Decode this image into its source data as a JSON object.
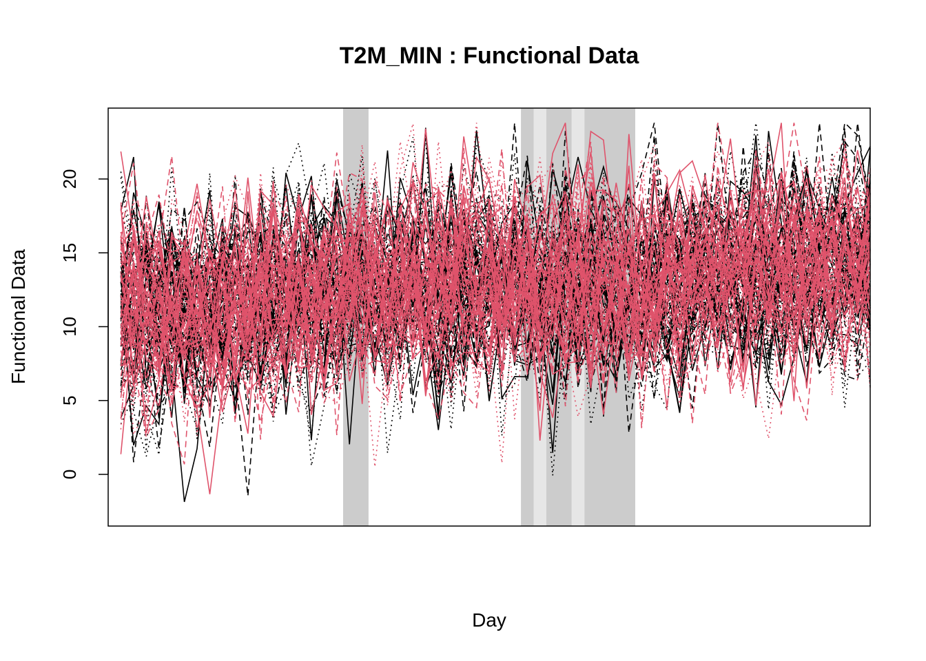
{
  "chart_data": {
    "type": "line",
    "title": "T2M_MIN : Functional Data",
    "xlabel": "Day",
    "ylabel": "Functional Data",
    "x_ticks_shown": false,
    "y_ticks": [
      0,
      5,
      10,
      15,
      20
    ],
    "xlim": [
      0,
      60
    ],
    "ylim": [
      -3.5,
      24.8
    ],
    "grid": false,
    "legend": "none",
    "x": [
      1,
      2,
      3,
      4,
      5,
      6,
      7,
      8,
      9,
      10,
      11,
      12,
      13,
      14,
      15,
      16,
      17,
      18,
      19,
      20,
      21,
      22,
      23,
      24,
      25,
      26,
      27,
      28,
      29,
      30,
      31,
      32,
      33,
      34,
      35,
      36,
      37,
      38,
      39,
      40,
      41,
      42,
      43,
      44,
      45,
      46,
      47,
      48,
      49,
      50,
      51,
      52,
      53,
      54,
      55,
      56,
      57,
      58,
      59,
      60
    ],
    "highlighted_intervals": [
      {
        "from": 18.5,
        "to": 20.5,
        "shade": "dark"
      },
      {
        "from": 32.5,
        "to": 33.5,
        "shade": "dark"
      },
      {
        "from": 33.5,
        "to": 34.5,
        "shade": "light"
      },
      {
        "from": 34.5,
        "to": 36.5,
        "shade": "dark"
      },
      {
        "from": 36.5,
        "to": 37.5,
        "shade": "light"
      },
      {
        "from": 37.5,
        "to": 41.5,
        "shade": "dark"
      }
    ],
    "shade_colors": {
      "dark": "#CCCCCC",
      "light": "#E6E6E6"
    },
    "series_groups": [
      {
        "color": "#000000",
        "count": 60
      },
      {
        "color": "#DF536B",
        "count": 60
      }
    ],
    "line_styles": [
      "solid",
      "dashed",
      "dotted"
    ],
    "mean_profile": [
      11.5,
      11.3,
      11.0,
      10.9,
      11.0,
      11.0,
      10.8,
      10.8,
      11.0,
      11.2,
      11.4,
      11.6,
      11.7,
      11.8,
      11.8,
      11.9,
      12.0,
      12.1,
      12.2,
      12.4,
      12.4,
      12.3,
      12.4,
      12.6,
      12.7,
      12.8,
      12.7,
      12.9,
      13.0,
      13.0,
      12.9,
      12.9,
      12.6,
      12.6,
      12.8,
      13.0,
      12.8,
      12.6,
      12.5,
      12.6,
      12.5,
      12.6,
      12.9,
      13.0,
      13.1,
      13.3,
      13.5,
      13.6,
      13.5,
      13.4,
      13.5,
      13.6,
      13.7,
      13.6,
      13.7,
      13.8,
      13.8,
      14.0,
      14.0,
      14.1
    ],
    "spread_sd": 3.4
  }
}
